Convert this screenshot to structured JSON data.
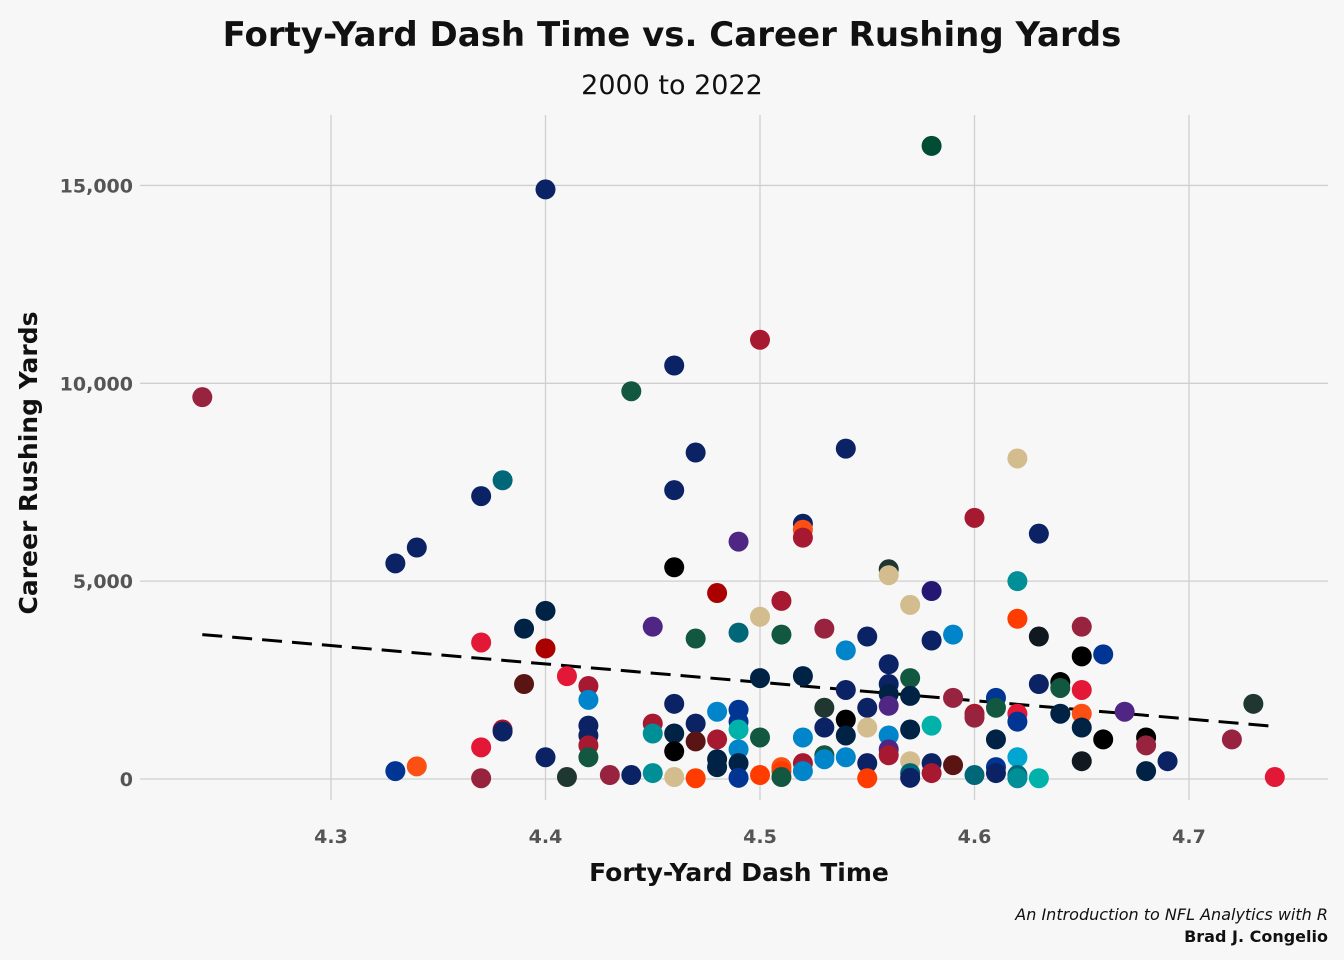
{
  "chart_data": {
    "type": "scatter",
    "title": "Forty-Yard Dash Time vs. Career Rushing Yards",
    "subtitle": "2000 to 2022",
    "xlabel": "Forty-Yard Dash Time",
    "ylabel": "Career Rushing Yards",
    "xlim": [
      4.22,
      4.75
    ],
    "ylim": [
      -400,
      16300
    ],
    "x_ticks": [
      4.3,
      4.4,
      4.5,
      4.6,
      4.7
    ],
    "x_tick_labels": [
      "4.3",
      "4.4",
      "4.5",
      "4.6",
      "4.7"
    ],
    "y_ticks": [
      0,
      5000,
      10000,
      15000
    ],
    "y_tick_labels": [
      "0",
      "5,000",
      "10,000",
      "15,000"
    ],
    "grid": true,
    "trend_line": {
      "style": "dashed",
      "color": "#000000",
      "from": [
        4.24,
        3650
      ],
      "to": [
        4.74,
        1330
      ]
    },
    "points": [
      {
        "x": 4.24,
        "y": 9650,
        "color": "#97233F"
      },
      {
        "x": 4.33,
        "y": 5450,
        "color": "#0B2265"
      },
      {
        "x": 4.33,
        "y": 200,
        "color": "#003594"
      },
      {
        "x": 4.34,
        "y": 5850,
        "color": "#0B2265"
      },
      {
        "x": 4.34,
        "y": 320,
        "color": "#FB4F14"
      },
      {
        "x": 4.37,
        "y": 7150,
        "color": "#0B2265"
      },
      {
        "x": 4.37,
        "y": 3450,
        "color": "#E31837"
      },
      {
        "x": 4.37,
        "y": 800,
        "color": "#E31837"
      },
      {
        "x": 4.37,
        "y": 20,
        "color": "#97233F"
      },
      {
        "x": 4.38,
        "y": 7550,
        "color": "#006778"
      },
      {
        "x": 4.38,
        "y": 1250,
        "color": "#A71930"
      },
      {
        "x": 4.38,
        "y": 1200,
        "color": "#0B2265"
      },
      {
        "x": 4.39,
        "y": 3800,
        "color": "#002244"
      },
      {
        "x": 4.39,
        "y": 2400,
        "color": "#5A1414"
      },
      {
        "x": 4.4,
        "y": 14900,
        "color": "#0B2265"
      },
      {
        "x": 4.4,
        "y": 4250,
        "color": "#002244"
      },
      {
        "x": 4.4,
        "y": 3300,
        "color": "#AA0000"
      },
      {
        "x": 4.4,
        "y": 550,
        "color": "#0B2265"
      },
      {
        "x": 4.41,
        "y": 2600,
        "color": "#E31837"
      },
      {
        "x": 4.41,
        "y": 50,
        "color": "#203731"
      },
      {
        "x": 4.42,
        "y": 2350,
        "color": "#A71930"
      },
      {
        "x": 4.42,
        "y": 2000,
        "color": "#0085CA"
      },
      {
        "x": 4.42,
        "y": 1350,
        "color": "#0B2265"
      },
      {
        "x": 4.42,
        "y": 1100,
        "color": "#0B2265"
      },
      {
        "x": 4.42,
        "y": 850,
        "color": "#A71930"
      },
      {
        "x": 4.42,
        "y": 550,
        "color": "#125740"
      },
      {
        "x": 4.43,
        "y": 100,
        "color": "#97233F"
      },
      {
        "x": 4.44,
        "y": 9800,
        "color": "#125740"
      },
      {
        "x": 4.44,
        "y": 100,
        "color": "#0B2265"
      },
      {
        "x": 4.45,
        "y": 3850,
        "color": "#4F2683"
      },
      {
        "x": 4.45,
        "y": 1400,
        "color": "#A71930"
      },
      {
        "x": 4.45,
        "y": 1150,
        "color": "#008E97"
      },
      {
        "x": 4.45,
        "y": 150,
        "color": "#008E97"
      },
      {
        "x": 4.46,
        "y": 10450,
        "color": "#0B2265"
      },
      {
        "x": 4.46,
        "y": 7300,
        "color": "#0B2265"
      },
      {
        "x": 4.46,
        "y": 5350,
        "color": "#000000"
      },
      {
        "x": 4.46,
        "y": 1900,
        "color": "#0B2265"
      },
      {
        "x": 4.46,
        "y": 1150,
        "color": "#002244"
      },
      {
        "x": 4.46,
        "y": 700,
        "color": "#000000"
      },
      {
        "x": 4.46,
        "y": 50,
        "color": "#D3BC8D"
      },
      {
        "x": 4.47,
        "y": 8250,
        "color": "#0B2265"
      },
      {
        "x": 4.47,
        "y": 3550,
        "color": "#125740"
      },
      {
        "x": 4.47,
        "y": 1400,
        "color": "#0B2265"
      },
      {
        "x": 4.47,
        "y": 950,
        "color": "#5A1414"
      },
      {
        "x": 4.47,
        "y": 20,
        "color": "#FF3C00"
      },
      {
        "x": 4.48,
        "y": 4700,
        "color": "#AA0000"
      },
      {
        "x": 4.48,
        "y": 1700,
        "color": "#0085CA"
      },
      {
        "x": 4.48,
        "y": 1000,
        "color": "#A71930"
      },
      {
        "x": 4.48,
        "y": 500,
        "color": "#002244"
      },
      {
        "x": 4.48,
        "y": 300,
        "color": "#002244"
      },
      {
        "x": 4.49,
        "y": 6000,
        "color": "#4F2683"
      },
      {
        "x": 4.49,
        "y": 3700,
        "color": "#006778"
      },
      {
        "x": 4.49,
        "y": 1750,
        "color": "#003594"
      },
      {
        "x": 4.49,
        "y": 1450,
        "color": "#003594"
      },
      {
        "x": 4.49,
        "y": 1250,
        "color": "#00B2A9"
      },
      {
        "x": 4.49,
        "y": 750,
        "color": "#0085CA"
      },
      {
        "x": 4.49,
        "y": 400,
        "color": "#002244"
      },
      {
        "x": 4.49,
        "y": 30,
        "color": "#003594"
      },
      {
        "x": 4.5,
        "y": 11100,
        "color": "#A71930"
      },
      {
        "x": 4.5,
        "y": 4100,
        "color": "#D3BC8D"
      },
      {
        "x": 4.5,
        "y": 2550,
        "color": "#002244"
      },
      {
        "x": 4.5,
        "y": 1050,
        "color": "#125740"
      },
      {
        "x": 4.5,
        "y": 100,
        "color": "#FF3C00"
      },
      {
        "x": 4.51,
        "y": 4500,
        "color": "#A71930"
      },
      {
        "x": 4.51,
        "y": 3650,
        "color": "#125740"
      },
      {
        "x": 4.51,
        "y": 300,
        "color": "#FB4F14"
      },
      {
        "x": 4.51,
        "y": 200,
        "color": "#FF3C00"
      },
      {
        "x": 4.51,
        "y": 50,
        "color": "#125740"
      },
      {
        "x": 4.52,
        "y": 6450,
        "color": "#0B2265"
      },
      {
        "x": 4.52,
        "y": 6300,
        "color": "#FB4F14"
      },
      {
        "x": 4.52,
        "y": 6100,
        "color": "#A71930"
      },
      {
        "x": 4.52,
        "y": 2600,
        "color": "#002244"
      },
      {
        "x": 4.52,
        "y": 1050,
        "color": "#0085CA"
      },
      {
        "x": 4.52,
        "y": 400,
        "color": "#A71930"
      },
      {
        "x": 4.52,
        "y": 200,
        "color": "#0085CA"
      },
      {
        "x": 4.53,
        "y": 3800,
        "color": "#97233F"
      },
      {
        "x": 4.53,
        "y": 1800,
        "color": "#203731"
      },
      {
        "x": 4.53,
        "y": 1300,
        "color": "#0B2265"
      },
      {
        "x": 4.53,
        "y": 600,
        "color": "#125740"
      },
      {
        "x": 4.53,
        "y": 500,
        "color": "#0085CA"
      },
      {
        "x": 4.54,
        "y": 8350,
        "color": "#0B2265"
      },
      {
        "x": 4.54,
        "y": 3250,
        "color": "#0085CA"
      },
      {
        "x": 4.54,
        "y": 2250,
        "color": "#0B2265"
      },
      {
        "x": 4.54,
        "y": 1500,
        "color": "#000000"
      },
      {
        "x": 4.54,
        "y": 1100,
        "color": "#002244"
      },
      {
        "x": 4.54,
        "y": 550,
        "color": "#0085CA"
      },
      {
        "x": 4.55,
        "y": 3600,
        "color": "#0B2265"
      },
      {
        "x": 4.55,
        "y": 1800,
        "color": "#0B2265"
      },
      {
        "x": 4.55,
        "y": 1300,
        "color": "#D3BC8D"
      },
      {
        "x": 4.55,
        "y": 400,
        "color": "#0B2265"
      },
      {
        "x": 4.55,
        "y": 20,
        "color": "#FF3C00"
      },
      {
        "x": 4.56,
        "y": 5300,
        "color": "#203731"
      },
      {
        "x": 4.56,
        "y": 5150,
        "color": "#D3BC8D"
      },
      {
        "x": 4.56,
        "y": 2900,
        "color": "#0B2265"
      },
      {
        "x": 4.56,
        "y": 2400,
        "color": "#0B2265"
      },
      {
        "x": 4.56,
        "y": 2150,
        "color": "#002244"
      },
      {
        "x": 4.56,
        "y": 1850,
        "color": "#4F2683"
      },
      {
        "x": 4.56,
        "y": 1100,
        "color": "#0085CA"
      },
      {
        "x": 4.56,
        "y": 750,
        "color": "#4F2683"
      },
      {
        "x": 4.56,
        "y": 600,
        "color": "#A71930"
      },
      {
        "x": 4.57,
        "y": 4400,
        "color": "#D3BC8D"
      },
      {
        "x": 4.57,
        "y": 2550,
        "color": "#125740"
      },
      {
        "x": 4.57,
        "y": 2100,
        "color": "#002244"
      },
      {
        "x": 4.57,
        "y": 1250,
        "color": "#002244"
      },
      {
        "x": 4.57,
        "y": 450,
        "color": "#D3BC8D"
      },
      {
        "x": 4.57,
        "y": 150,
        "color": "#006778"
      },
      {
        "x": 4.57,
        "y": 30,
        "color": "#0B2265"
      },
      {
        "x": 4.58,
        "y": 16000,
        "color": "#004C34"
      },
      {
        "x": 4.58,
        "y": 4750,
        "color": "#241773"
      },
      {
        "x": 4.58,
        "y": 3500,
        "color": "#0B2265"
      },
      {
        "x": 4.58,
        "y": 1350,
        "color": "#00B2A9"
      },
      {
        "x": 4.58,
        "y": 400,
        "color": "#0B2265"
      },
      {
        "x": 4.58,
        "y": 150,
        "color": "#A71930"
      },
      {
        "x": 4.59,
        "y": 3650,
        "color": "#0085CA"
      },
      {
        "x": 4.59,
        "y": 2050,
        "color": "#97233F"
      },
      {
        "x": 4.59,
        "y": 350,
        "color": "#5A1414"
      },
      {
        "x": 4.6,
        "y": 6600,
        "color": "#A71930"
      },
      {
        "x": 4.6,
        "y": 1650,
        "color": "#A71930"
      },
      {
        "x": 4.6,
        "y": 1550,
        "color": "#97233F"
      },
      {
        "x": 4.6,
        "y": 100,
        "color": "#006778"
      },
      {
        "x": 4.61,
        "y": 2050,
        "color": "#003594"
      },
      {
        "x": 4.61,
        "y": 1800,
        "color": "#125740"
      },
      {
        "x": 4.61,
        "y": 1000,
        "color": "#002244"
      },
      {
        "x": 4.61,
        "y": 300,
        "color": "#003594"
      },
      {
        "x": 4.61,
        "y": 150,
        "color": "#0B2265"
      },
      {
        "x": 4.62,
        "y": 8100,
        "color": "#D3BC8D"
      },
      {
        "x": 4.62,
        "y": 5000,
        "color": "#008E97"
      },
      {
        "x": 4.62,
        "y": 4050,
        "color": "#FF3C00"
      },
      {
        "x": 4.62,
        "y": 1650,
        "color": "#E31837"
      },
      {
        "x": 4.62,
        "y": 1450,
        "color": "#003594"
      },
      {
        "x": 4.62,
        "y": 550,
        "color": "#00A5D0"
      },
      {
        "x": 4.62,
        "y": 100,
        "color": "#006778"
      },
      {
        "x": 4.62,
        "y": 20,
        "color": "#008E97"
      },
      {
        "x": 4.63,
        "y": 6200,
        "color": "#0B2265"
      },
      {
        "x": 4.63,
        "y": 3600,
        "color": "#101820"
      },
      {
        "x": 4.63,
        "y": 2400,
        "color": "#0B2265"
      },
      {
        "x": 4.63,
        "y": 20,
        "color": "#00B2A9"
      },
      {
        "x": 4.64,
        "y": 2450,
        "color": "#000000"
      },
      {
        "x": 4.64,
        "y": 2300,
        "color": "#125740"
      },
      {
        "x": 4.64,
        "y": 1650,
        "color": "#002244"
      },
      {
        "x": 4.65,
        "y": 3850,
        "color": "#97233F"
      },
      {
        "x": 4.65,
        "y": 3100,
        "color": "#000000"
      },
      {
        "x": 4.65,
        "y": 2250,
        "color": "#E31837"
      },
      {
        "x": 4.65,
        "y": 1650,
        "color": "#FB4F14"
      },
      {
        "x": 4.65,
        "y": 1300,
        "color": "#002244"
      },
      {
        "x": 4.65,
        "y": 450,
        "color": "#101820"
      },
      {
        "x": 4.66,
        "y": 3150,
        "color": "#003594"
      },
      {
        "x": 4.66,
        "y": 1000,
        "color": "#000000"
      },
      {
        "x": 4.67,
        "y": 1700,
        "color": "#4F2683"
      },
      {
        "x": 4.68,
        "y": 1050,
        "color": "#000000"
      },
      {
        "x": 4.68,
        "y": 850,
        "color": "#97233F"
      },
      {
        "x": 4.68,
        "y": 200,
        "color": "#002244"
      },
      {
        "x": 4.69,
        "y": 450,
        "color": "#0B2265"
      },
      {
        "x": 4.72,
        "y": 1000,
        "color": "#97233F"
      },
      {
        "x": 4.73,
        "y": 1900,
        "color": "#203731"
      },
      {
        "x": 4.74,
        "y": 50,
        "color": "#E31837"
      }
    ]
  },
  "caption": {
    "line1": "An Introduction to NFL Analytics with R",
    "line2": "Brad J. Congelio"
  }
}
